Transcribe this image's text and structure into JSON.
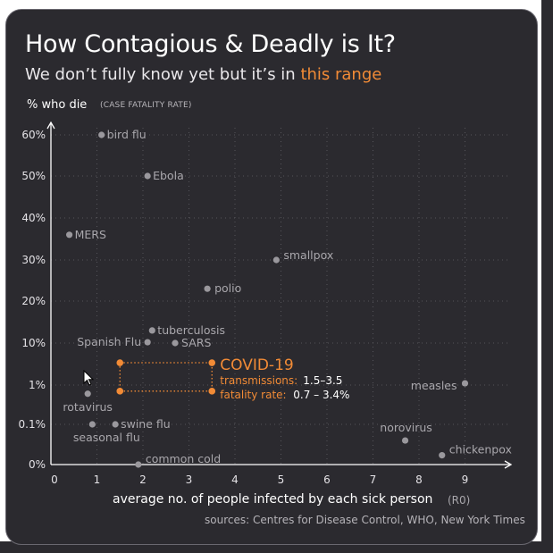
{
  "title": "How Contagious & Deadly is It?",
  "subtitle_main": "We don’t fully know yet but it’s in ",
  "subtitle_highlight": "this range",
  "y_axis_label": "% who die",
  "y_axis_sublabel": "(CASE FATALITY RATE)",
  "x_axis_label": "average no. of people infected by each sick person",
  "x_axis_sublabel": "(R0)",
  "source": "sources: Centres for Disease Control, WHO, New York Times",
  "colors": {
    "background": "#2b2a2f",
    "point": "#9a989d",
    "label": "#a9a7ac",
    "accent": "#f28b36",
    "text": "#ffffff",
    "grid": "#55545a"
  },
  "chart_data": {
    "type": "scatter",
    "x_ticks": [
      "0",
      "1",
      "2",
      "3",
      "4",
      "5",
      "6",
      "7",
      "8",
      "9"
    ],
    "y_ticks": [
      "0%",
      "0.1%",
      "1%",
      "10%",
      "20%",
      "30%",
      "40%",
      "50%",
      "60%"
    ],
    "y_scale": "mixed (log below 10%, linear above)",
    "xlim": [
      0,
      10
    ],
    "grid": true,
    "points": [
      {
        "label": "bird flu",
        "x": 1.1,
        "y": 60
      },
      {
        "label": "Ebola",
        "x": 2.1,
        "y": 50
      },
      {
        "label": "MERS",
        "x": 0.4,
        "y": 36
      },
      {
        "label": "smallpox",
        "x": 4.9,
        "y": 30
      },
      {
        "label": "polio",
        "x": 3.4,
        "y": 23
      },
      {
        "label": "tuberculosis",
        "x": 2.2,
        "y": 13
      },
      {
        "label": "Spanish Flu",
        "x": 2.1,
        "y": 10.2
      },
      {
        "label": "SARS",
        "x": 2.7,
        "y": 10
      },
      {
        "label": "measles",
        "x": 9.0,
        "y": 1.1
      },
      {
        "label": "rotavirus",
        "x": 0.8,
        "y": 0.6
      },
      {
        "label": "swine flu",
        "x": 1.4,
        "y": 0.1
      },
      {
        "label": "seasonal flu",
        "x": 0.9,
        "y": 0.1
      },
      {
        "label": "norovirus",
        "x": 7.7,
        "y": 0.03
      },
      {
        "label": "chickenpox",
        "x": 8.5,
        "y": 0.01
      },
      {
        "label": "common cold",
        "x": 1.9,
        "y": 0.005
      }
    ],
    "covid": {
      "label": "COVID-19",
      "transmissions_label": "transmissions:",
      "transmissions_value": "1.5–3.5",
      "fatality_label": "fatality rate:",
      "fatality_value": "0.7 – 3.4%",
      "x_range": [
        1.5,
        3.5
      ],
      "y_range": [
        0.7,
        3.4
      ]
    }
  }
}
